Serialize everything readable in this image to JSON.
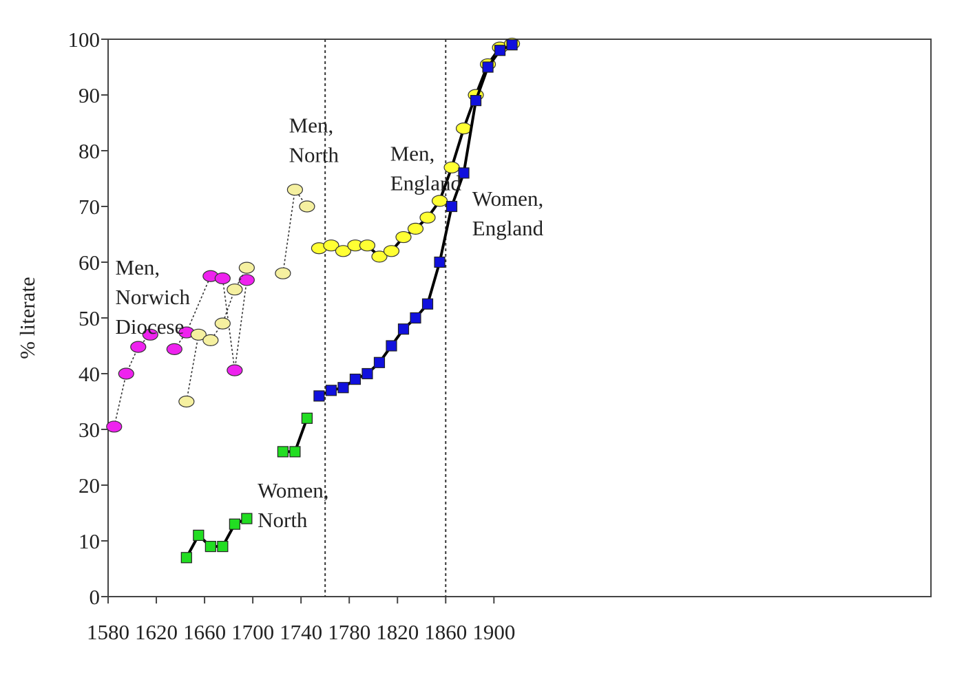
{
  "chart_data": {
    "type": "line",
    "title": "",
    "xlabel": "",
    "ylabel": "% literate",
    "xlim": [
      1580,
      1920
    ],
    "ylim": [
      0,
      100
    ],
    "x_ticks": [
      "1580",
      "1620",
      "1660",
      "1700",
      "1740",
      "1780",
      "1820",
      "1860",
      "1900"
    ],
    "y_ticks": [
      "0",
      "10",
      "20",
      "30",
      "40",
      "50",
      "60",
      "70",
      "80",
      "90",
      "100"
    ],
    "grid": false,
    "legend": "none",
    "vertical_reference_lines": [
      1760,
      1860
    ],
    "colors": {
      "magenta": "#ee22ee",
      "light_yellow": "#f5f0a0",
      "yellow": "#ffff33",
      "green": "#22dd22",
      "blue": "#1111dd"
    },
    "series": [
      {
        "marker": "ellipse",
        "color": "#ee22ee",
        "line": "dotted",
        "segments": [
          [
            [
              1585,
              30.5
            ],
            [
              1595,
              40
            ],
            [
              1605,
              44.8
            ],
            [
              1615,
              47
            ]
          ],
          [
            [
              1635,
              44.4
            ],
            [
              1645,
              47.4
            ],
            [
              1665,
              57.5
            ],
            [
              1675,
              57.1
            ],
            [
              1685,
              40.6
            ],
            [
              1695,
              56.8
            ]
          ]
        ]
      },
      {
        "marker": "ellipse",
        "color": "#f5f0a0",
        "line": "dotted",
        "segments": [
          [
            [
              1645,
              35
            ],
            [
              1655,
              47
            ],
            [
              1665,
              46
            ],
            [
              1675,
              49
            ],
            [
              1685,
              55.1
            ],
            [
              1695,
              59
            ]
          ],
          [
            [
              1725,
              58
            ],
            [
              1735,
              73
            ],
            [
              1745,
              70
            ]
          ]
        ]
      },
      {
        "marker": "square",
        "color": "#22dd22",
        "line": "solid",
        "segments": [
          [
            [
              1645,
              7
            ],
            [
              1655,
              11
            ],
            [
              1665,
              9
            ],
            [
              1675,
              9
            ],
            [
              1685,
              13
            ],
            [
              1695,
              14
            ]
          ],
          [
            [
              1725,
              26
            ],
            [
              1735,
              26
            ],
            [
              1745,
              32
            ]
          ]
        ]
      },
      {
        "marker": "ellipse",
        "color": "#ffff33",
        "line": "solid",
        "segments": [
          [
            [
              1755,
              62.5
            ],
            [
              1765,
              63
            ],
            [
              1775,
              62
            ],
            [
              1785,
              63
            ],
            [
              1795,
              63
            ],
            [
              1805,
              61
            ],
            [
              1815,
              62
            ],
            [
              1825,
              64.5
            ],
            [
              1835,
              66
            ],
            [
              1845,
              68
            ],
            [
              1855,
              71
            ],
            [
              1865,
              77
            ],
            [
              1875,
              84
            ],
            [
              1885,
              90
            ],
            [
              1895,
              95.5
            ],
            [
              1905,
              98.5
            ],
            [
              1915,
              99.2
            ]
          ]
        ]
      },
      {
        "marker": "square",
        "color": "#1111dd",
        "line": "solid",
        "segments": [
          [
            [
              1755,
              36
            ],
            [
              1765,
              37
            ],
            [
              1775,
              37.5
            ],
            [
              1785,
              39
            ],
            [
              1795,
              40
            ],
            [
              1805,
              42
            ],
            [
              1815,
              45
            ],
            [
              1825,
              48
            ],
            [
              1835,
              50
            ],
            [
              1845,
              52.5
            ],
            [
              1855,
              60
            ],
            [
              1865,
              70
            ],
            [
              1875,
              76
            ],
            [
              1885,
              89
            ],
            [
              1895,
              95
            ],
            [
              1905,
              98
            ],
            [
              1915,
              99
            ]
          ]
        ]
      }
    ],
    "annotations": [
      {
        "lines": [
          "Men,",
          "Norwich",
          "Diocese"
        ],
        "x": 1586,
        "y": 57.8
      },
      {
        "lines": [
          "Men,",
          "North"
        ],
        "x": 1730,
        "y": 83.3
      },
      {
        "lines": [
          "Men,",
          "England"
        ],
        "x": 1814,
        "y": 78.2
      },
      {
        "lines": [
          "Women,",
          "England"
        ],
        "x": 1882,
        "y": 70.1
      },
      {
        "lines": [
          "Women,",
          "North"
        ],
        "x": 1704,
        "y": 17.8
      }
    ]
  }
}
